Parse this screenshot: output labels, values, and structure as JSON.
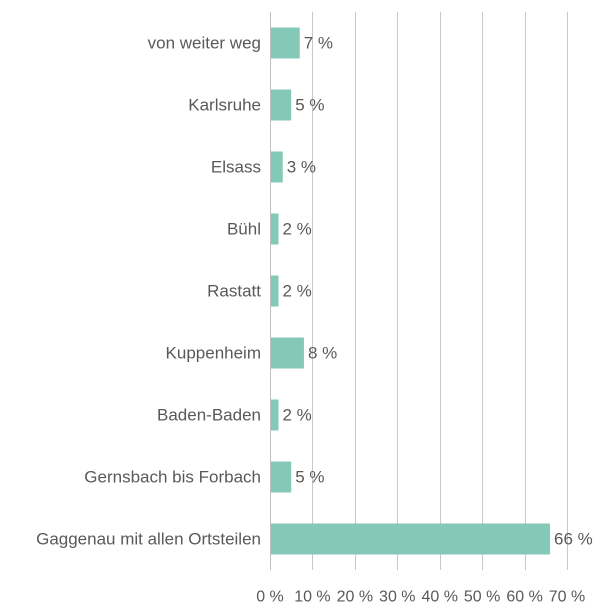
{
  "chart_data": {
    "type": "bar",
    "orientation": "horizontal",
    "categories": [
      "von weiter weg",
      "Karlsruhe",
      "Elsass",
      "Bühl",
      "Rastatt",
      "Kuppenheim",
      "Baden-Baden",
      "Gernsbach bis Forbach",
      "Gaggenau mit allen Ortsteilen"
    ],
    "values": [
      7,
      5,
      3,
      2,
      2,
      8,
      2,
      5,
      66
    ],
    "value_labels": [
      "7 %",
      "5 %",
      "3 %",
      "2 %",
      "2 %",
      "8 %",
      "2 %",
      "5 %",
      "66 %"
    ],
    "x_ticks": [
      "0 %",
      "10 %",
      "20 %",
      "30 %",
      "40 %",
      "50 %",
      "60 %",
      "70 %"
    ],
    "xlim": [
      0,
      70
    ],
    "grid": true,
    "title": "",
    "xlabel": "",
    "ylabel": "",
    "bar_color": "#84c9b8"
  }
}
